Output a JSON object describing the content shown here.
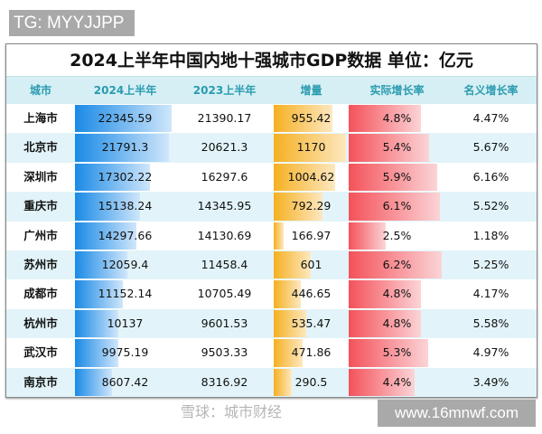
{
  "watermark_top": "TG: MYYJJPP",
  "watermark_site": "www.16mnwf.com",
  "watermark_overlay": "雪球：城市财经",
  "title": "2024上半年中国内地十强城市GDP数据   单位：亿元",
  "headers": [
    "城市",
    "2024上半年",
    "2023上半年",
    "增量",
    "实际增长率",
    "名义增长率"
  ],
  "colors": {
    "gdp_bar": "#1a8ae6",
    "increase_bar": "#f5b021",
    "real_growth_bar": "#f4525a",
    "header_text": "#2a9bb0"
  },
  "rows": [
    {
      "city": "上海市",
      "gdp2024": "22345.59",
      "gdp2023": "21390.17",
      "increase": "955.42",
      "real": "4.8%",
      "nominal": "4.47%"
    },
    {
      "city": "北京市",
      "gdp2024": "21791.3",
      "gdp2023": "20621.3",
      "increase": "1170",
      "real": "5.4%",
      "nominal": "5.67%"
    },
    {
      "city": "深圳市",
      "gdp2024": "17302.22",
      "gdp2023": "16297.6",
      "increase": "1004.62",
      "real": "5.9%",
      "nominal": "6.16%"
    },
    {
      "city": "重庆市",
      "gdp2024": "15138.24",
      "gdp2023": "14345.95",
      "increase": "792.29",
      "real": "6.1%",
      "nominal": "5.52%"
    },
    {
      "city": "广州市",
      "gdp2024": "14297.66",
      "gdp2023": "14130.69",
      "increase": "166.97",
      "real": "2.5%",
      "nominal": "1.18%"
    },
    {
      "city": "苏州市",
      "gdp2024": "12059.4",
      "gdp2023": "11458.4",
      "increase": "601",
      "real": "6.2%",
      "nominal": "5.25%"
    },
    {
      "city": "成都市",
      "gdp2024": "11152.14",
      "gdp2023": "10705.49",
      "increase": "446.65",
      "real": "4.8%",
      "nominal": "4.17%"
    },
    {
      "city": "杭州市",
      "gdp2024": "10137",
      "gdp2023": "9601.53",
      "increase": "535.47",
      "real": "4.8%",
      "nominal": "5.58%"
    },
    {
      "city": "武汉市",
      "gdp2024": "9975.19",
      "gdp2023": "9503.33",
      "increase": "471.86",
      "real": "5.3%",
      "nominal": "4.97%"
    },
    {
      "city": "南京市",
      "gdp2024": "8607.42",
      "gdp2023": "8316.92",
      "increase": "290.5",
      "real": "4.4%",
      "nominal": "3.49%"
    }
  ]
}
